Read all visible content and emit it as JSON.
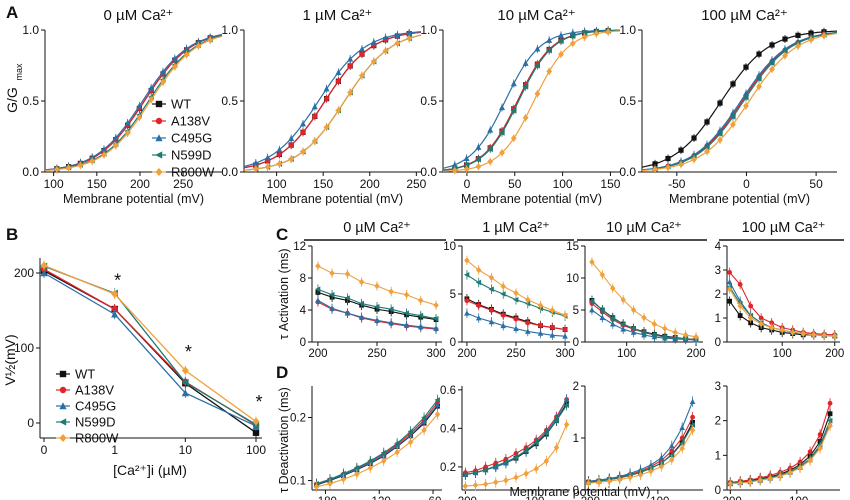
{
  "colors": {
    "WT": "#111111",
    "A138V": "#e0242a",
    "C495G": "#2a6fa8",
    "N599D": "#1f7a72",
    "R800W": "#f0a03c"
  },
  "legend": [
    "WT",
    "A138V",
    "C495G",
    "N599D",
    "R800W"
  ],
  "panel_letters": [
    "A",
    "B",
    "C",
    "D"
  ],
  "panelA": {
    "ylabel_main": "G/G",
    "ylabel_sub": "max",
    "xlabel": "Membrane potential (mV)",
    "yticks": [
      "0.0",
      "0.5",
      "1.0"
    ],
    "subplots": [
      {
        "title": "0 µM Ca²⁺",
        "xlim": [
          90,
          295
        ],
        "xticks": [
          100,
          150,
          200,
          250
        ],
        "vhalf": {
          "WT": 205,
          "A138V": 205,
          "C495G": 203,
          "N599D": 210,
          "R800W": 212
        },
        "slope": 27
      },
      {
        "title": "1 µM Ca²⁺",
        "xlim": [
          65,
          255
        ],
        "xticks": [
          100,
          150,
          200,
          250
        ],
        "vhalf": {
          "WT": 152,
          "A138V": 152,
          "C495G": 145,
          "N599D": 173,
          "R800W": 173
        },
        "slope": 25
      },
      {
        "title": "10 µM Ca²⁺",
        "xlim": [
          -25,
          160
        ],
        "xticks": [
          0,
          50,
          100,
          150
        ],
        "vhalf": {
          "WT": 53,
          "A138V": 53,
          "C495G": 40,
          "N599D": 54,
          "R800W": 70
        },
        "slope": 18
      },
      {
        "title": "100 µM Ca²⁺",
        "xlim": [
          -75,
          65
        ],
        "xticks": [
          -50,
          0,
          50
        ],
        "vhalf": {
          "WT": -18,
          "A138V": -3,
          "C495G": -4,
          "N599D": -2,
          "R800W": 2
        },
        "slope": 17
      }
    ]
  },
  "panelB": {
    "ylabel": "V½(mV)",
    "xlabel": "[Ca²⁺]i (µM)",
    "xticks": [
      "0",
      "1",
      "10",
      "100"
    ],
    "yticks": [
      0,
      100,
      200
    ],
    "star": "*",
    "series": {
      "WT": [
        203,
        152,
        53,
        -13
      ],
      "A138V": [
        205,
        152,
        55,
        -3
      ],
      "C495G": [
        200,
        145,
        40,
        -4
      ],
      "N599D": [
        209,
        173,
        54,
        -2
      ],
      "R800W": [
        210,
        172,
        70,
        2
      ]
    }
  },
  "panelC": {
    "ylabel": "τ Activation (ms)",
    "xlabel_common": "Membrane potential (mV)",
    "subplots": [
      {
        "title": "0 µM Ca²⁺",
        "xlim": [
          195,
          305
        ],
        "xticks": [
          200,
          250,
          300
        ],
        "ylim": [
          0,
          12
        ],
        "yticks": [
          0,
          4,
          8,
          12
        ],
        "x": [
          200,
          212,
          225,
          237,
          250,
          262,
          275,
          287,
          300
        ],
        "series": {
          "WT": [
            6.2,
            5.6,
            5.2,
            4.6,
            4.1,
            3.8,
            3.4,
            3.1,
            2.8
          ],
          "A138V": [
            5.0,
            4.1,
            3.6,
            3.0,
            2.6,
            2.3,
            2.0,
            1.8,
            1.6
          ],
          "C495G": [
            5.2,
            4.2,
            3.6,
            3.1,
            2.7,
            2.4,
            2.1,
            1.9,
            1.7
          ],
          "N599D": [
            6.6,
            5.9,
            5.5,
            4.8,
            4.4,
            4.1,
            3.6,
            3.3,
            2.9
          ],
          "R800W": [
            9.5,
            8.6,
            8.5,
            7.5,
            7.0,
            6.3,
            5.9,
            5.2,
            4.6
          ]
        }
      },
      {
        "title": "1 µM Ca²⁺",
        "xlim": [
          195,
          305
        ],
        "xticks": [
          200,
          250,
          300
        ],
        "ylim": [
          0,
          10
        ],
        "yticks": [
          0,
          5,
          10
        ],
        "x": [
          200,
          212,
          225,
          237,
          250,
          262,
          275,
          287,
          300
        ],
        "series": {
          "WT": [
            4.5,
            3.9,
            3.4,
            2.9,
            2.5,
            2.1,
            1.7,
            1.5,
            1.3
          ],
          "A138V": [
            4.3,
            3.8,
            3.3,
            2.8,
            2.4,
            2.0,
            1.7,
            1.5,
            1.3
          ],
          "C495G": [
            3.0,
            2.5,
            2.1,
            1.7,
            1.4,
            1.1,
            0.9,
            0.7,
            0.6
          ],
          "N599D": [
            7.0,
            6.2,
            5.5,
            5.0,
            4.4,
            4.0,
            3.5,
            3.1,
            2.7
          ],
          "R800W": [
            8.5,
            7.5,
            6.7,
            5.8,
            5.1,
            4.4,
            3.8,
            3.3,
            2.8
          ]
        }
      },
      {
        "title": "10 µM Ca²⁺",
        "xlim": [
          40,
          210
        ],
        "xticks": [
          100,
          200
        ],
        "ylim": [
          0,
          15
        ],
        "yticks": [
          0,
          5,
          10,
          15
        ],
        "x": [
          50,
          65,
          80,
          95,
          110,
          125,
          140,
          155,
          170,
          185,
          200
        ],
        "series": {
          "WT": [
            6.5,
            5.0,
            3.8,
            2.8,
            2.1,
            1.6,
            1.2,
            0.9,
            0.7,
            0.5,
            0.4
          ],
          "A138V": [
            6.0,
            4.7,
            3.5,
            2.6,
            2.0,
            1.5,
            1.1,
            0.8,
            0.6,
            0.5,
            0.4
          ],
          "C495G": [
            5.0,
            3.8,
            2.8,
            2.0,
            1.5,
            1.1,
            0.8,
            0.6,
            0.5,
            0.4,
            0.3
          ],
          "N599D": [
            6.4,
            5.0,
            3.7,
            2.8,
            2.1,
            1.5,
            1.1,
            0.8,
            0.6,
            0.5,
            0.4
          ],
          "R800W": [
            12.5,
            10.5,
            8.4,
            6.6,
            5.0,
            3.8,
            2.8,
            2.1,
            1.5,
            1.1,
            0.8
          ]
        }
      },
      {
        "title": "100 µM Ca²⁺",
        "xlim": [
          -5,
          210
        ],
        "xticks": [
          100,
          200
        ],
        "ylim": [
          0,
          4
        ],
        "yticks": [
          0,
          1,
          2,
          3,
          4
        ],
        "x": [
          0,
          20,
          40,
          60,
          80,
          100,
          120,
          140,
          160,
          180,
          200
        ],
        "series": {
          "WT": [
            1.7,
            1.1,
            0.8,
            0.6,
            0.5,
            0.4,
            0.35,
            0.3,
            0.3,
            0.28,
            0.25
          ],
          "A138V": [
            2.9,
            2.4,
            1.5,
            1.0,
            0.8,
            0.6,
            0.5,
            0.4,
            0.35,
            0.32,
            0.3
          ],
          "C495G": [
            2.5,
            1.7,
            1.1,
            0.8,
            0.6,
            0.5,
            0.4,
            0.35,
            0.3,
            0.28,
            0.25
          ],
          "N599D": [
            2.3,
            1.6,
            1.1,
            0.8,
            0.6,
            0.5,
            0.4,
            0.35,
            0.3,
            0.28,
            0.25
          ],
          "R800W": [
            2.2,
            1.5,
            1.0,
            0.75,
            0.6,
            0.5,
            0.4,
            0.35,
            0.3,
            0.28,
            0.25
          ]
        }
      }
    ]
  },
  "panelD": {
    "ylabel": "τ Deactivation (ms)",
    "xlabel": "Membrane potential (mV)",
    "subplots": [
      {
        "xlim": [
          -195,
          -50
        ],
        "xticks": [
          -180,
          -120,
          -60
        ],
        "ylim": [
          0.085,
          0.25
        ],
        "yticks": [
          0.1,
          0.2
        ],
        "ytick_labels": [
          "0.1",
          "0.2"
        ],
        "x": [
          -190,
          -175,
          -160,
          -145,
          -130,
          -115,
          -100,
          -85,
          -70,
          -55
        ],
        "series": {
          "WT": [
            0.093,
            0.1,
            0.108,
            0.117,
            0.127,
            0.139,
            0.154,
            0.171,
            0.191,
            0.218
          ],
          "A138V": [
            0.094,
            0.101,
            0.11,
            0.119,
            0.13,
            0.142,
            0.157,
            0.175,
            0.196,
            0.224
          ],
          "C495G": [
            0.094,
            0.101,
            0.109,
            0.118,
            0.128,
            0.14,
            0.155,
            0.172,
            0.193,
            0.22
          ],
          "N599D": [
            0.095,
            0.102,
            0.111,
            0.12,
            0.131,
            0.144,
            0.159,
            0.178,
            0.2,
            0.228
          ],
          "R800W": [
            0.09,
            0.095,
            0.102,
            0.11,
            0.12,
            0.131,
            0.145,
            0.161,
            0.18,
            0.205
          ]
        }
      },
      {
        "xlim": [
          -205,
          -45
        ],
        "xticks": [
          -200,
          -100
        ],
        "ylim": [
          0.08,
          0.62
        ],
        "yticks": [
          0.2,
          0.4,
          0.6
        ],
        "ytick_labels": [
          "0.2",
          "0.4",
          "0.6"
        ],
        "x": [
          -200,
          -185,
          -170,
          -155,
          -140,
          -125,
          -110,
          -95,
          -80,
          -65,
          -50
        ],
        "series": {
          "WT": [
            0.16,
            0.17,
            0.185,
            0.2,
            0.22,
            0.245,
            0.28,
            0.32,
            0.37,
            0.44,
            0.53
          ],
          "A138V": [
            0.17,
            0.18,
            0.2,
            0.22,
            0.24,
            0.27,
            0.3,
            0.34,
            0.39,
            0.46,
            0.55
          ],
          "C495G": [
            0.16,
            0.17,
            0.185,
            0.2,
            0.22,
            0.25,
            0.285,
            0.33,
            0.38,
            0.45,
            0.55
          ],
          "N599D": [
            0.16,
            0.17,
            0.185,
            0.205,
            0.225,
            0.25,
            0.285,
            0.325,
            0.375,
            0.44,
            0.52
          ],
          "R800W": [
            0.1,
            0.105,
            0.11,
            0.12,
            0.13,
            0.145,
            0.165,
            0.19,
            0.23,
            0.3,
            0.42
          ]
        }
      },
      {
        "xlim": [
          -205,
          -35
        ],
        "xticks": [
          -200,
          -100
        ],
        "ylim": [
          0,
          2
        ],
        "yticks": [
          0,
          1,
          2
        ],
        "ytick_labels": [
          "0",
          "1",
          "2"
        ],
        "x": [
          -200,
          -185,
          -170,
          -155,
          -140,
          -125,
          -110,
          -95,
          -80,
          -65,
          -50
        ],
        "series": {
          "WT": [
            0.15,
            0.17,
            0.2,
            0.24,
            0.28,
            0.34,
            0.42,
            0.52,
            0.68,
            0.92,
            1.3
          ],
          "A138V": [
            0.16,
            0.18,
            0.21,
            0.25,
            0.3,
            0.36,
            0.45,
            0.57,
            0.75,
            1.0,
            1.4
          ],
          "C495G": [
            0.17,
            0.19,
            0.22,
            0.26,
            0.32,
            0.39,
            0.48,
            0.62,
            0.85,
            1.2,
            1.7
          ],
          "N599D": [
            0.15,
            0.17,
            0.2,
            0.23,
            0.28,
            0.34,
            0.42,
            0.52,
            0.67,
            0.9,
            1.25
          ],
          "R800W": [
            0.13,
            0.15,
            0.17,
            0.2,
            0.24,
            0.29,
            0.36,
            0.45,
            0.58,
            0.8,
            1.15
          ]
        }
      },
      {
        "xlim": [
          -205,
          -35
        ],
        "xticks": [
          -200,
          -100
        ],
        "ylim": [
          0,
          3
        ],
        "yticks": [
          0,
          1,
          2,
          3
        ],
        "ytick_labels": [
          "0",
          "1",
          "2",
          "3"
        ],
        "x": [
          -200,
          -185,
          -170,
          -155,
          -140,
          -125,
          -110,
          -95,
          -80,
          -65,
          -50
        ],
        "series": {
          "WT": [
            0.2,
            0.23,
            0.27,
            0.32,
            0.38,
            0.46,
            0.57,
            0.73,
            0.98,
            1.4,
            2.2
          ],
          "A138V": [
            0.22,
            0.25,
            0.29,
            0.35,
            0.42,
            0.51,
            0.63,
            0.81,
            1.1,
            1.6,
            2.5
          ],
          "C495G": [
            0.18,
            0.21,
            0.24,
            0.28,
            0.34,
            0.41,
            0.51,
            0.65,
            0.87,
            1.25,
            1.9
          ],
          "N599D": [
            0.19,
            0.22,
            0.25,
            0.3,
            0.36,
            0.43,
            0.53,
            0.68,
            0.91,
            1.3,
            2.0
          ],
          "R800W": [
            0.18,
            0.2,
            0.23,
            0.28,
            0.33,
            0.4,
            0.5,
            0.64,
            0.85,
            1.2,
            1.85
          ]
        }
      }
    ]
  }
}
